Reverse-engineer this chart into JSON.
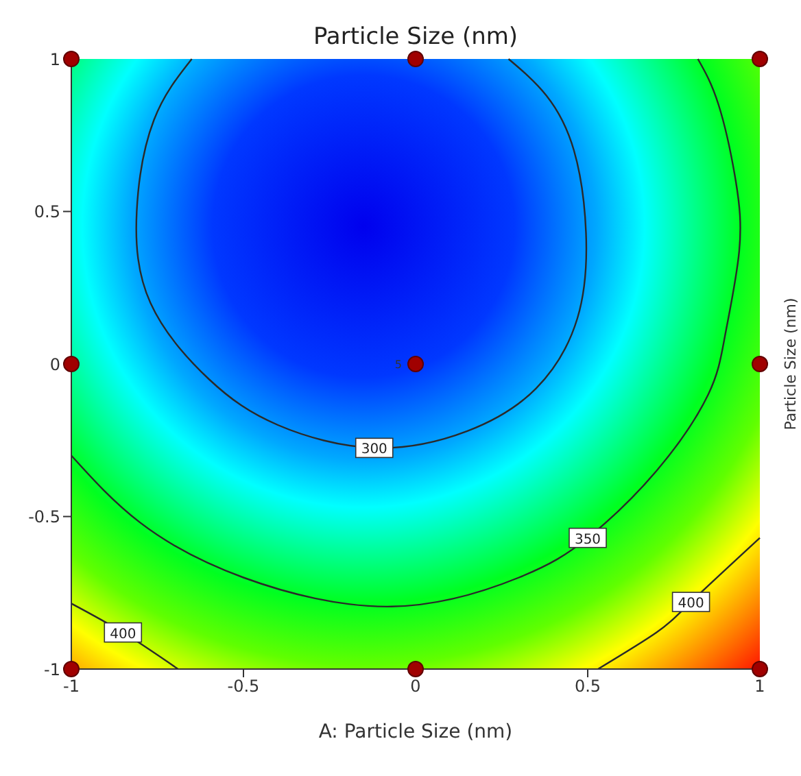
{
  "chart_data": {
    "type": "line",
    "title": "Particle Size (nm)",
    "xlabel": "A: Particle Size (nm)",
    "clabel": "Particle Size (nm)",
    "xlim": [
      -1,
      1
    ],
    "ylim": [
      -1,
      1
    ],
    "xticks": [
      -1,
      -0.5,
      0,
      0.5,
      1
    ],
    "yticks": [
      -1,
      -0.5,
      0,
      0.5,
      1
    ],
    "marker": "none",
    "line_style": "solid",
    "annotations": [
      {
        "text": "5",
        "x": 0,
        "y": 0
      }
    ],
    "series": [
      {
        "name": "300",
        "color": "#2a2a2a",
        "x": [
          -0.65,
          -0.76,
          -0.81,
          -0.77,
          -0.6,
          -0.4,
          -0.12,
          0.15,
          0.35,
          0.47,
          0.495,
          0.46,
          0.38,
          0.27
        ],
        "values": [
          1,
          0.8,
          0.5,
          0.2,
          -0.05,
          -0.2,
          -0.275,
          -0.22,
          -0.08,
          0.15,
          0.43,
          0.7,
          0.88,
          1
        ]
      },
      {
        "name": "350",
        "color": "#2a2a2a",
        "x": [
          -1,
          -0.8,
          -0.5,
          -0.07,
          0.3,
          0.5,
          0.7,
          0.85,
          0.9,
          0.94,
          0.93,
          0.88,
          0.82
        ],
        "values": [
          -0.3,
          -0.52,
          -0.7,
          -0.795,
          -0.7,
          -0.57,
          -0.35,
          -0.1,
          0.1,
          0.37,
          0.6,
          0.85,
          1
        ]
      },
      {
        "name": "400",
        "color": "#2a2a2a",
        "x": [
          -1,
          -0.85,
          -0.69
        ],
        "values": [
          -0.785,
          -0.88,
          -1
        ]
      },
      {
        "name": "400",
        "color": "#2a2a2a",
        "x": [
          0.53,
          0.7,
          0.8,
          1
        ],
        "values": [
          -1,
          -0.88,
          -0.78,
          -0.57
        ]
      },
      {
        "type": "scatter",
        "marker": "circle",
        "color": "#a00000",
        "x": [
          -1,
          0,
          1,
          -1,
          0,
          1,
          -1,
          0,
          1
        ],
        "values": [
          1,
          1,
          1,
          0,
          0,
          0,
          -1,
          -1,
          -1
        ]
      }
    ]
  }
}
